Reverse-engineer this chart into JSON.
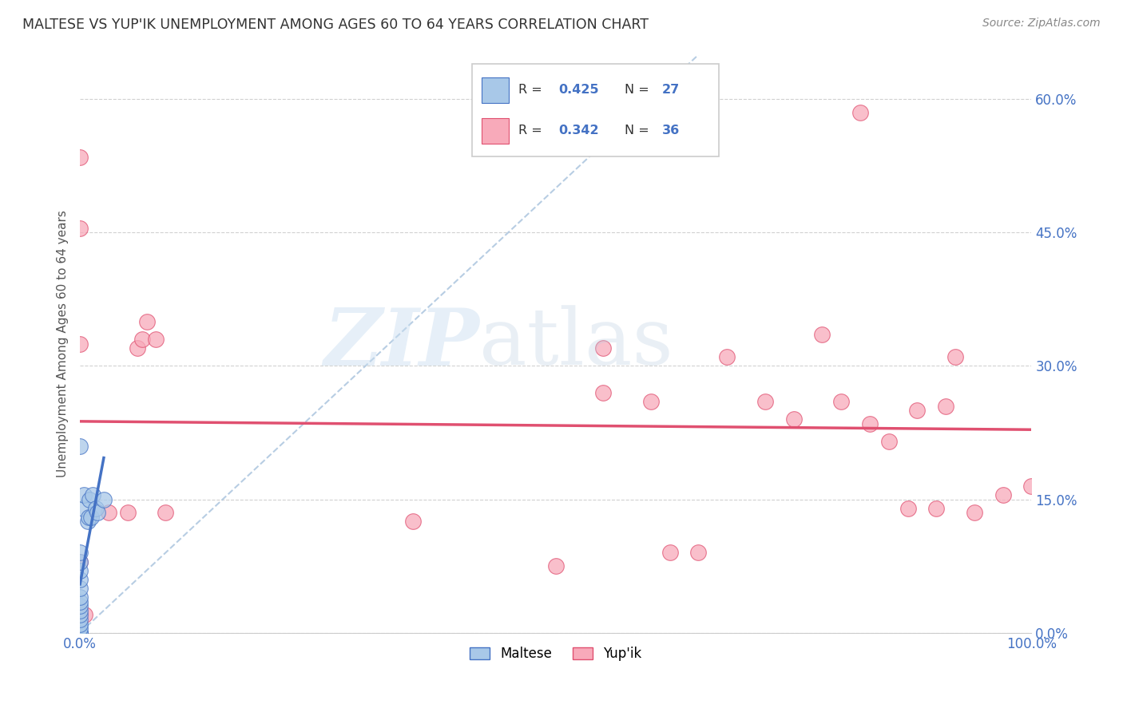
{
  "title": "MALTESE VS YUP'IK UNEMPLOYMENT AMONG AGES 60 TO 64 YEARS CORRELATION CHART",
  "source": "Source: ZipAtlas.com",
  "ylabel": "Unemployment Among Ages 60 to 64 years",
  "xlim": [
    0.0,
    1.0
  ],
  "ylim": [
    0.0,
    0.65
  ],
  "xticks": [
    0.0,
    0.1,
    0.2,
    0.3,
    0.4,
    0.5,
    0.6,
    0.7,
    0.8,
    0.9,
    1.0
  ],
  "xticklabels_show": [
    "0.0%",
    "",
    "",
    "",
    "",
    "",
    "",
    "",
    "",
    "",
    "100.0%"
  ],
  "yticks": [
    0.0,
    0.15,
    0.3,
    0.45,
    0.6
  ],
  "yticklabels": [
    "0.0%",
    "15.0%",
    "30.0%",
    "45.0%",
    "60.0%"
  ],
  "maltese_R": 0.425,
  "maltese_N": 27,
  "yupik_R": 0.342,
  "yupik_N": 36,
  "maltese_color": "#a8c8e8",
  "yupik_color": "#f8aaba",
  "maltese_line_color": "#4472c4",
  "yupik_line_color": "#e05070",
  "diagonal_color": "#b0c8e0",
  "maltese_x": [
    0.0,
    0.0,
    0.0,
    0.0,
    0.0,
    0.0,
    0.0,
    0.0,
    0.0,
    0.0,
    0.0,
    0.0,
    0.0,
    0.0,
    0.0,
    0.0,
    0.0,
    0.003,
    0.004,
    0.008,
    0.009,
    0.01,
    0.012,
    0.013,
    0.017,
    0.018,
    0.025
  ],
  "maltese_y": [
    0.0,
    0.0,
    0.0,
    0.005,
    0.01,
    0.015,
    0.02,
    0.025,
    0.03,
    0.035,
    0.04,
    0.05,
    0.06,
    0.07,
    0.08,
    0.09,
    0.21,
    0.14,
    0.155,
    0.125,
    0.13,
    0.15,
    0.13,
    0.155,
    0.14,
    0.135,
    0.15
  ],
  "yupik_x": [
    0.0,
    0.0,
    0.0,
    0.0,
    0.0,
    0.005,
    0.03,
    0.05,
    0.06,
    0.065,
    0.07,
    0.08,
    0.09,
    0.35,
    0.5,
    0.55,
    0.55,
    0.6,
    0.62,
    0.65,
    0.68,
    0.72,
    0.75,
    0.78,
    0.8,
    0.82,
    0.83,
    0.85,
    0.87,
    0.88,
    0.9,
    0.91,
    0.92,
    0.94,
    0.97,
    1.0
  ],
  "yupik_y": [
    0.535,
    0.455,
    0.325,
    0.08,
    0.02,
    0.02,
    0.135,
    0.135,
    0.32,
    0.33,
    0.35,
    0.33,
    0.135,
    0.125,
    0.075,
    0.32,
    0.27,
    0.26,
    0.09,
    0.09,
    0.31,
    0.26,
    0.24,
    0.335,
    0.26,
    0.585,
    0.235,
    0.215,
    0.14,
    0.25,
    0.14,
    0.255,
    0.31,
    0.135,
    0.155,
    0.165
  ]
}
